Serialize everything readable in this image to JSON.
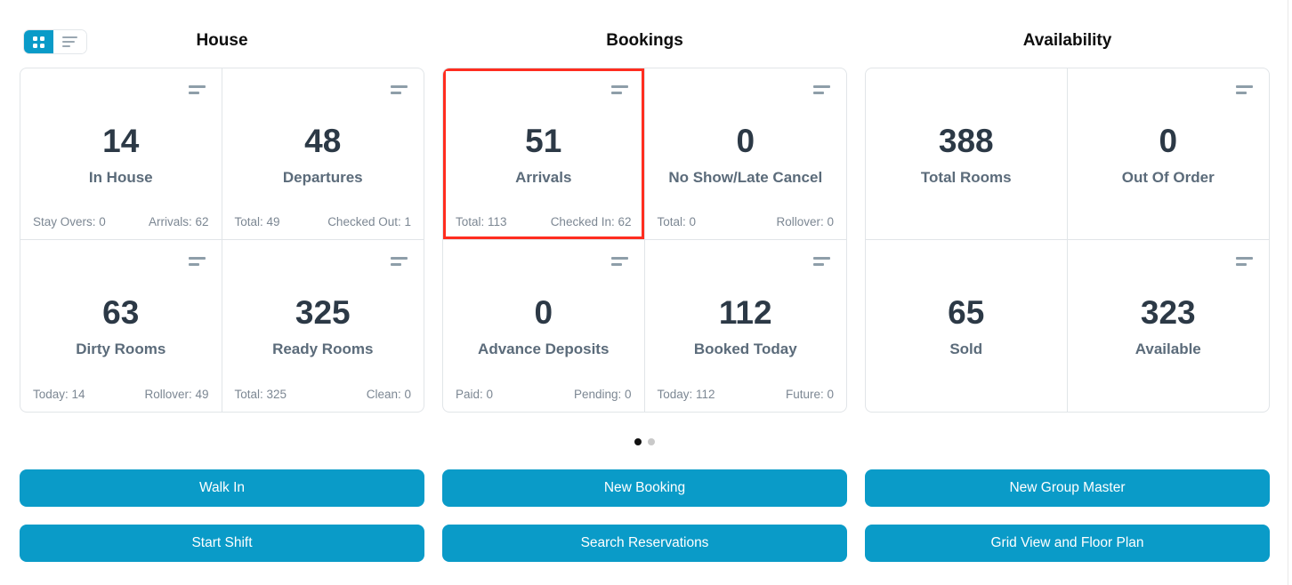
{
  "colors": {
    "accent_blue": "#0a9bc8",
    "highlight_red": "#ff2d1f",
    "value_text": "#2c3946",
    "label_text": "#5b6b7a",
    "footer_text": "#7c8793",
    "icon_gray": "#8e9ea9",
    "card_border": "#e1e5e8",
    "dot_active": "#111111",
    "dot_inactive": "#c9c9c9"
  },
  "view_toggle": {
    "active": "grid",
    "options": [
      "grid",
      "list"
    ]
  },
  "sections": [
    {
      "title": "House",
      "cards": [
        {
          "value": "14",
          "label": "In House",
          "footer_left": "Stay Overs: 0",
          "footer_right": "Arrivals: 62"
        },
        {
          "value": "48",
          "label": "Departures",
          "footer_left": "Total: 49",
          "footer_right": "Checked Out: 1"
        },
        {
          "value": "63",
          "label": "Dirty Rooms",
          "footer_left": "Today: 14",
          "footer_right": "Rollover: 49"
        },
        {
          "value": "325",
          "label": "Ready Rooms",
          "footer_left": "Total: 325",
          "footer_right": "Clean: 0"
        }
      ]
    },
    {
      "title": "Bookings",
      "cards": [
        {
          "value": "51",
          "label": "Arrivals",
          "footer_left": "Total: 113",
          "footer_right": "Checked In: 62",
          "highlighted": true
        },
        {
          "value": "0",
          "label": "No Show/Late Cancel",
          "footer_left": "Total: 0",
          "footer_right": "Rollover: 0"
        },
        {
          "value": "0",
          "label": "Advance Deposits",
          "footer_left": "Paid: 0",
          "footer_right": "Pending: 0"
        },
        {
          "value": "112",
          "label": "Booked Today",
          "footer_left": "Today: 112",
          "footer_right": "Future: 0"
        }
      ]
    },
    {
      "title": "Availability",
      "cards": [
        {
          "value": "388",
          "label": "Total Rooms"
        },
        {
          "value": "0",
          "label": "Out Of Order"
        },
        {
          "value": "65",
          "label": "Sold"
        },
        {
          "value": "323",
          "label": "Available"
        }
      ]
    }
  ],
  "pagination": {
    "total_pages": 2,
    "active_page": 1
  },
  "action_buttons": [
    "Walk In",
    "New Booking",
    "New Group Master",
    "Start Shift",
    "Search Reservations",
    "Grid View and Floor Plan"
  ]
}
